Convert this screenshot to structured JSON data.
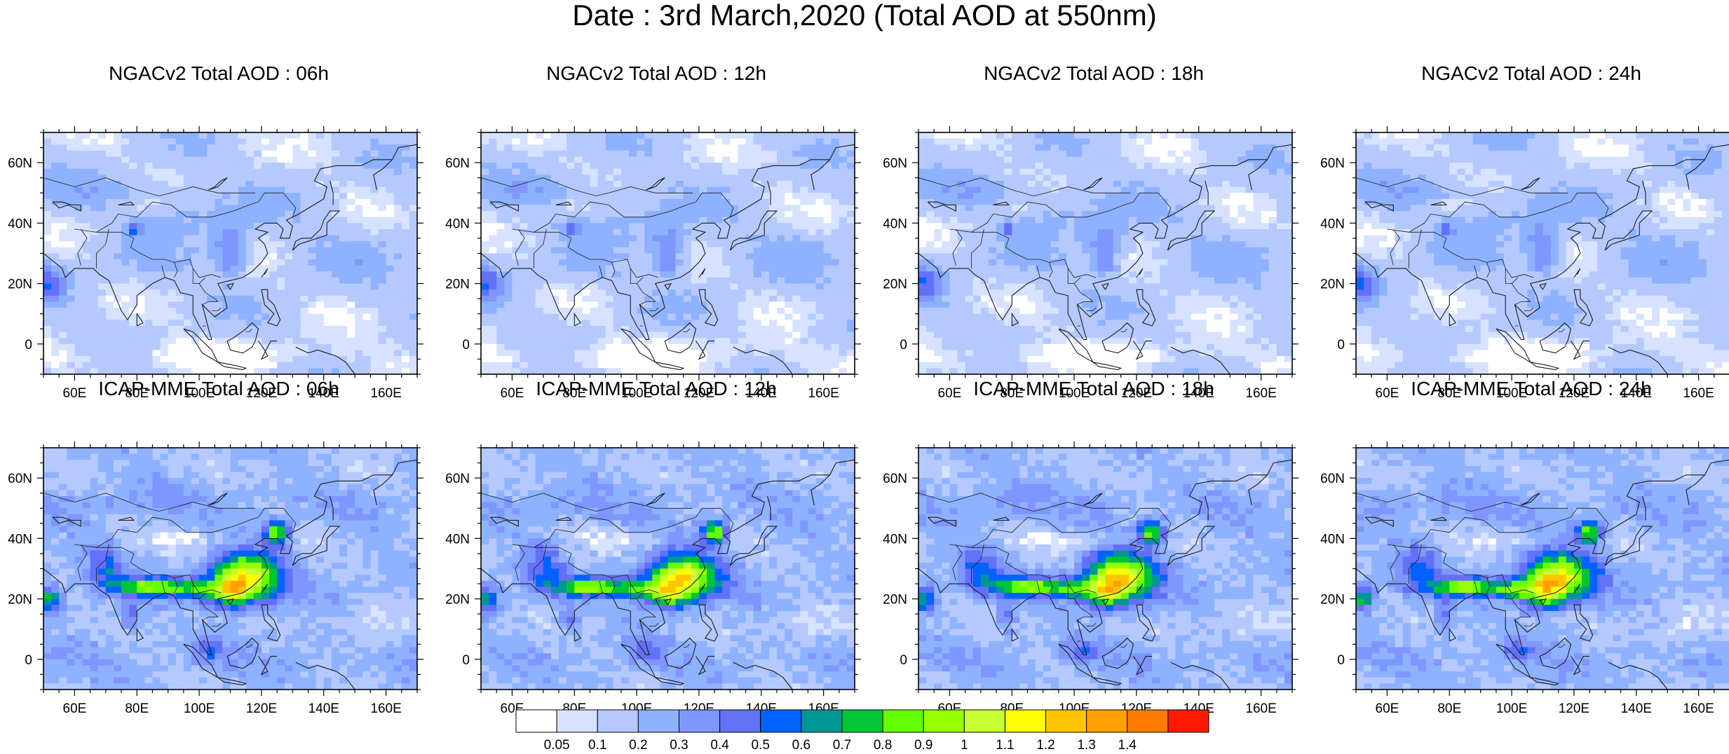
{
  "title": "Date : 3rd March,2020 (Total AOD at 550nm)",
  "chart_data": {
    "type": "heatmap",
    "x_ticks": [
      "60E",
      "80E",
      "100E",
      "120E",
      "140E",
      "160E"
    ],
    "x_tick_values": [
      60,
      80,
      100,
      120,
      140,
      160
    ],
    "y_ticks": [
      "60N",
      "40N",
      "20N",
      "0"
    ],
    "y_tick_values": [
      60,
      40,
      20,
      0
    ],
    "xlim": [
      50,
      170
    ],
    "ylim": [
      -10,
      70
    ],
    "panels": [
      {
        "title": "NGACv2 Total AOD : 06h",
        "model": "NGACv2",
        "seed": 11
      },
      {
        "title": "NGACv2 Total AOD : 12h",
        "model": "NGACv2",
        "seed": 23
      },
      {
        "title": "NGACv2 Total AOD : 18h",
        "model": "NGACv2",
        "seed": 37
      },
      {
        "title": "NGACv2 Total AOD : 24h",
        "model": "NGACv2",
        "seed": 41
      },
      {
        "title": "ICAP-MME Total AOD : 06h",
        "model": "ICAP-MME",
        "seed": 53
      },
      {
        "title": "ICAP-MME Total AOD : 12h",
        "model": "ICAP-MME",
        "seed": 67
      },
      {
        "title": "ICAP-MME Total AOD : 18h",
        "model": "ICAP-MME",
        "seed": 71
      },
      {
        "title": "ICAP-MME Total AOD : 24h",
        "model": "ICAP-MME",
        "seed": 89
      }
    ],
    "colorbar": {
      "levels": [
        "0.05",
        "0.1",
        "0.2",
        "0.3",
        "0.4",
        "0.5",
        "0.6",
        "0.7",
        "0.8",
        "0.9",
        "1",
        "1.1",
        "1.2",
        "1.3",
        "1.4"
      ],
      "colors": [
        "#ffffff",
        "#d6e2ff",
        "#b5c9ff",
        "#8eb2ff",
        "#7f96ff",
        "#6370f8",
        "#0063ff",
        "#009696",
        "#00c633",
        "#63ff00",
        "#96ff00",
        "#c6ff33",
        "#ffff00",
        "#ffc400",
        "#ffa000",
        "#ff7c00",
        "#ff1900"
      ]
    }
  }
}
